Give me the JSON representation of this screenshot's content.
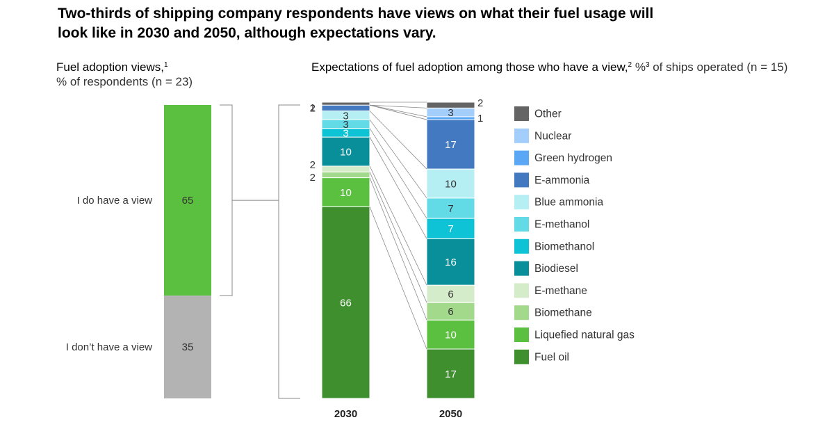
{
  "title": "Two-thirds of shipping company respondents have views on what their fuel usage will look like in 2030 and 2050, although expectations vary.",
  "left_panel": {
    "subtitle_bold": "Fuel adoption views,",
    "subtitle_sup": "1",
    "subtitle_rest": "% of respondents (n = 23)"
  },
  "right_panel": {
    "subtitle_bold": "Expectations of fuel adoption among those who have a view,",
    "subtitle_sup1": "2",
    "subtitle_mid": " %",
    "subtitle_sup2": "3",
    "subtitle_rest": " of ships operated (n = 15)"
  },
  "chart_data": [
    {
      "type": "bar",
      "stacked": true,
      "categories": [
        "I do have a view",
        "I don’t have a view"
      ],
      "values": [
        65,
        35
      ],
      "colors": [
        "#5bbf3f",
        "#b3b3b3"
      ]
    },
    {
      "type": "bar",
      "stacked": true,
      "categories": [
        "2030",
        "2050"
      ],
      "series": [
        {
          "name": "Fuel oil",
          "color": "#3f8f2f",
          "values": [
            66,
            17
          ]
        },
        {
          "name": "Liquefied natural gas",
          "color": "#5bbf3f",
          "values": [
            10,
            10
          ]
        },
        {
          "name": "Biomethane",
          "color": "#a3d98b",
          "values": [
            2,
            6
          ]
        },
        {
          "name": "E-methane",
          "color": "#d4ecc9",
          "values": [
            2,
            6
          ]
        },
        {
          "name": "Biodiesel",
          "color": "#088f99",
          "values": [
            10,
            16
          ]
        },
        {
          "name": "Biomethanol",
          "color": "#0fc3d6",
          "values": [
            3,
            7
          ]
        },
        {
          "name": "E-methanol",
          "color": "#62dbe6",
          "values": [
            3,
            7
          ]
        },
        {
          "name": "Blue ammonia",
          "color": "#b5eef3",
          "values": [
            3,
            10
          ]
        },
        {
          "name": "E-ammonia",
          "color": "#4279c1",
          "values": [
            2,
            17
          ]
        },
        {
          "name": "Green hydrogen",
          "color": "#5aa8f5",
          "values": [
            0,
            1
          ]
        },
        {
          "name": "Nuclear",
          "color": "#a3cdfa",
          "values": [
            0,
            3
          ]
        },
        {
          "name": "Other",
          "color": "#646464",
          "values": [
            1,
            2
          ]
        }
      ]
    }
  ]
}
